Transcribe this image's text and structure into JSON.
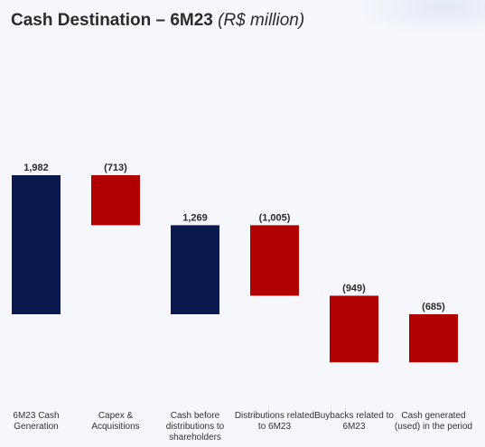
{
  "title": {
    "main": "Cash Destination – 6M23",
    "unit": "(R$ million)"
  },
  "colors": {
    "total": "#0b1a4e",
    "negative": "#b00000",
    "background": "#f5f7fc",
    "label": "#333333"
  },
  "chart_data": {
    "type": "bar",
    "subtype": "waterfall",
    "categories": [
      "6M23 Cash Generation",
      "Capex & Acquisitions",
      "Cash before distributions to shareholders",
      "Distributions related to 6M23",
      "Buybacks related to 6M23",
      "Cash generated (used) in the period"
    ],
    "values": [
      1982,
      -713,
      1269,
      -1005,
      -949,
      -685
    ],
    "value_labels": [
      "1,982",
      "(713)",
      "1,269",
      "(1,005)",
      "(949)",
      "(685)"
    ],
    "bar_kinds": [
      "total",
      "delta",
      "total",
      "delta",
      "delta",
      "total"
    ],
    "legend": "none",
    "grid": false
  }
}
